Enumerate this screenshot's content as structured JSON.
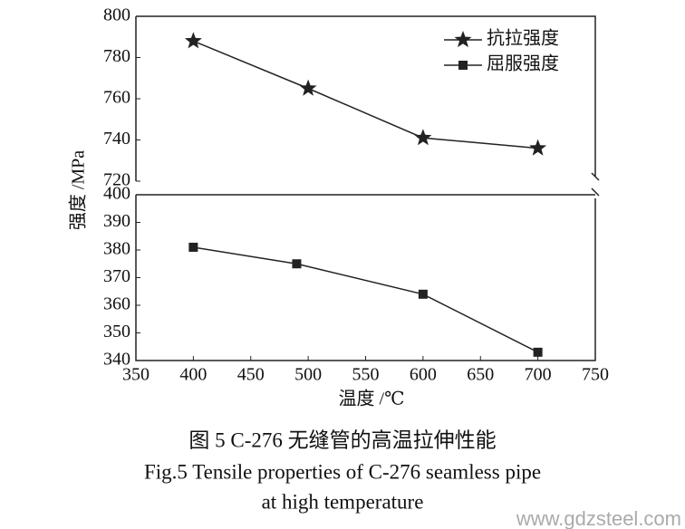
{
  "chart_data": [
    {
      "type": "line",
      "ylabel": "强度 /MPa",
      "legend": "upper right",
      "x": [
        400,
        500,
        600,
        700
      ],
      "xlim": [
        350,
        750
      ],
      "ylim": [
        720,
        800
      ],
      "yticks": [
        720,
        740,
        760,
        780,
        800
      ],
      "series": [
        {
          "name": "抗拉强度",
          "color": "#222222",
          "marker": "star",
          "values": [
            788,
            765,
            741,
            736
          ]
        }
      ]
    },
    {
      "type": "line",
      "xlabel": "温度 /℃",
      "x": [
        400,
        490,
        600,
        700
      ],
      "xlim": [
        350,
        750
      ],
      "xticks": [
        350,
        400,
        450,
        500,
        550,
        600,
        650,
        700,
        750
      ],
      "ylim": [
        340,
        400
      ],
      "yticks": [
        340,
        350,
        360,
        370,
        380,
        390,
        400
      ],
      "series": [
        {
          "name": "屈服强度",
          "color": "#222222",
          "marker": "square",
          "values": [
            381,
            375,
            364,
            343
          ]
        }
      ]
    }
  ],
  "caption": {
    "cn": "图 5  C-276 无缝管的高温拉伸性能",
    "en": [
      "Fig.5  Tensile properties of C-276 seamless pipe",
      "at high temperature"
    ]
  },
  "watermark": "www.gdzsteel.com"
}
